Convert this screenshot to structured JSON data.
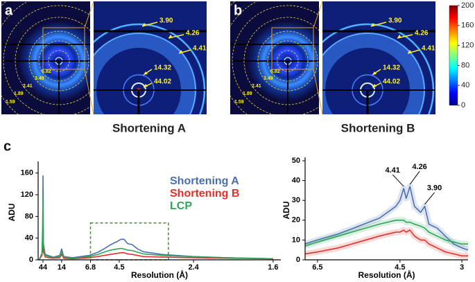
{
  "panels": [
    {
      "letter": "a",
      "caption": "Shortening A",
      "ring_labels": [
        "6.82",
        "3.49",
        "2.41",
        "1.89",
        "1.59"
      ],
      "zoom_labels": [
        "3.90",
        "4.26",
        "4.41",
        "14.32",
        "44.02"
      ]
    },
    {
      "letter": "b",
      "caption": "Shortening B",
      "ring_labels": [
        "6.82",
        "3.49",
        "2.41",
        "1.89",
        "1.59"
      ],
      "zoom_labels": [
        "3.90",
        "4.26",
        "4.41",
        "14.32",
        "44.02"
      ]
    }
  ],
  "colorbar": {
    "lim": [
      0,
      200
    ],
    "ticks": [
      0,
      40,
      80,
      120,
      160,
      200
    ]
  },
  "panel_c_letter": "c",
  "chart_data": [
    {
      "type": "line",
      "x_label": "Resolution (Å)",
      "y_label": "ADU",
      "xscale": "reciprocal",
      "x": [
        80,
        50,
        46,
        44,
        42,
        35,
        20,
        15,
        14,
        13,
        10,
        7,
        6,
        5.5,
        5,
        4.6,
        4.41,
        4.26,
        4.1,
        3.9,
        3.7,
        3.5,
        3,
        2.4,
        2,
        1.6
      ],
      "series": [
        {
          "name": "Shortening A",
          "color": "#4a6fb0",
          "values": [
            0,
            10,
            40,
            155,
            30,
            10,
            5,
            8,
            20,
            6,
            4,
            8,
            14,
            20,
            28,
            34,
            38,
            38,
            30,
            28,
            20,
            15,
            10,
            6,
            4,
            2
          ]
        },
        {
          "name": "Shortening B",
          "color": "#e0302a",
          "values": [
            0,
            8,
            20,
            80,
            15,
            5,
            3,
            4,
            10,
            3,
            2,
            4,
            6,
            8,
            10,
            12,
            13,
            13,
            11,
            10,
            8,
            6,
            5,
            4,
            3,
            2
          ]
        },
        {
          "name": "LCP",
          "color": "#2ea55a",
          "values": [
            0,
            12,
            60,
            120,
            25,
            8,
            4,
            6,
            15,
            5,
            3,
            6,
            10,
            14,
            18,
            20,
            21,
            20,
            18,
            17,
            14,
            11,
            8,
            6,
            4,
            2
          ]
        }
      ],
      "xlim": [
        100,
        1.55
      ],
      "xticks": [
        44,
        14,
        6.8,
        4.5,
        2.4,
        1.6
      ],
      "ylim": [
        0,
        175
      ],
      "yticks": [
        0,
        40,
        80,
        120,
        160
      ]
    },
    {
      "type": "line",
      "x_label": "Resolution (Å)",
      "y_label": "ADU",
      "xscale": "linear",
      "x": [
        6.8,
        6.5,
        6,
        5.5,
        5,
        4.8,
        4.6,
        4.5,
        4.41,
        4.35,
        4.26,
        4.15,
        4.0,
        3.9,
        3.8,
        3.6,
        3.4,
        3.2,
        3.0,
        2.85
      ],
      "series": [
        {
          "name": "Shortening A",
          "color": "#4a6fb0",
          "values": [
            8,
            10,
            13,
            17,
            21,
            24,
            27,
            30,
            36,
            31,
            37,
            27,
            24,
            27,
            18,
            16,
            12,
            8,
            6,
            5
          ]
        },
        {
          "name": "Shortening B",
          "color": "#e0302a",
          "values": [
            3,
            4,
            6,
            9,
            12,
            13,
            14,
            14,
            15,
            14,
            15,
            12,
            10,
            10,
            8,
            6,
            4,
            3,
            2,
            2
          ]
        },
        {
          "name": "LCP",
          "color": "#2ea55a",
          "values": [
            7,
            9,
            12,
            15,
            18,
            19,
            20,
            20,
            20,
            19,
            19,
            18,
            17,
            16,
            14,
            12,
            10,
            9,
            8,
            8
          ]
        }
      ],
      "annotations": [
        {
          "text": "4.41",
          "x": 4.41
        },
        {
          "text": "4.26",
          "x": 4.26
        },
        {
          "text": "3.90",
          "x": 3.9
        }
      ],
      "xlim": [
        6.8,
        2.85
      ],
      "xticks": [
        6.5,
        4.5,
        3.0
      ],
      "ylim": [
        0,
        50
      ],
      "yticks": [
        0,
        10,
        20,
        30,
        40,
        50
      ]
    }
  ]
}
